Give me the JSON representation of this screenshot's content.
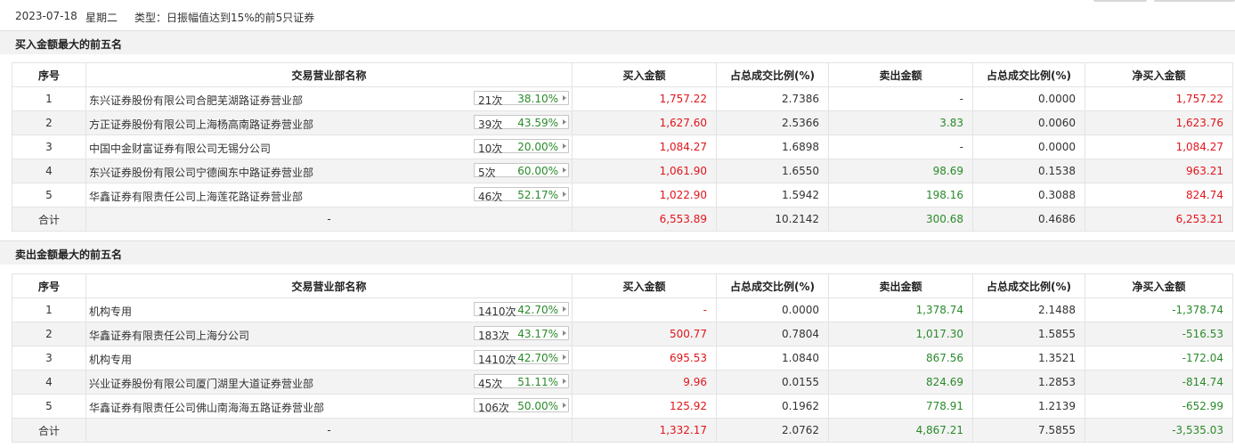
{
  "header": {
    "date": "2023-07-18",
    "weekday": "星期二",
    "type_text": "类型：日振幅值达到15%的前5只证券"
  },
  "columns": [
    "序号",
    "交易营业部名称",
    "买入金额",
    "占总成交比例(%)",
    "卖出金额",
    "占总成交比例(%)",
    "净买入金额"
  ],
  "buy_section": {
    "title": "买入金额最大的前五名",
    "rows": [
      {
        "idx": "1",
        "name": "东兴证券股份有限公司合肥芜湖路证券营业部",
        "times": "21次",
        "rate": "38.10%",
        "buy": "1,757.22",
        "buy_pct": "2.7386",
        "sell": "-",
        "sell_pct": "0.0000",
        "net": "1,757.22",
        "net_color": "red"
      },
      {
        "idx": "2",
        "name": "方正证券股份有限公司上海杨高南路证券营业部",
        "times": "39次",
        "rate": "43.59%",
        "buy": "1,627.60",
        "buy_pct": "2.5366",
        "sell": "3.83",
        "sell_pct": "0.0060",
        "net": "1,623.76",
        "net_color": "red"
      },
      {
        "idx": "3",
        "name": "中国中金财富证券有限公司无锡分公司",
        "times": "10次",
        "rate": "20.00%",
        "buy": "1,084.27",
        "buy_pct": "1.6898",
        "sell": "-",
        "sell_pct": "0.0000",
        "net": "1,084.27",
        "net_color": "red"
      },
      {
        "idx": "4",
        "name": "东兴证券股份有限公司宁德闽东中路证券营业部",
        "times": "5次",
        "rate": "60.00%",
        "buy": "1,061.90",
        "buy_pct": "1.6550",
        "sell": "98.69",
        "sell_pct": "0.1538",
        "net": "963.21",
        "net_color": "red"
      },
      {
        "idx": "5",
        "name": "华鑫证券有限责任公司上海莲花路证券营业部",
        "times": "46次",
        "rate": "52.17%",
        "buy": "1,022.90",
        "buy_pct": "1.5942",
        "sell": "198.16",
        "sell_pct": "0.3088",
        "net": "824.74",
        "net_color": "red"
      }
    ],
    "total": {
      "label": "合计",
      "name": "-",
      "buy": "6,553.89",
      "buy_pct": "10.2142",
      "sell": "300.68",
      "sell_pct": "0.4686",
      "net": "6,253.21",
      "net_color": "red"
    }
  },
  "sell_section": {
    "title": "卖出金额最大的前五名",
    "rows": [
      {
        "idx": "1",
        "name": "机构专用",
        "times": "1410次",
        "rate": "42.70%",
        "buy": "-",
        "buy_pct": "0.0000",
        "sell": "1,378.74",
        "sell_pct": "2.1488",
        "net": "-1,378.74",
        "net_color": "green"
      },
      {
        "idx": "2",
        "name": "华鑫证券有限责任公司上海分公司",
        "times": "183次",
        "rate": "43.17%",
        "buy": "500.77",
        "buy_pct": "0.7804",
        "sell": "1,017.30",
        "sell_pct": "1.5855",
        "net": "-516.53",
        "net_color": "green"
      },
      {
        "idx": "3",
        "name": "机构专用",
        "times": "1410次",
        "rate": "42.70%",
        "buy": "695.53",
        "buy_pct": "1.0840",
        "sell": "867.56",
        "sell_pct": "1.3521",
        "net": "-172.04",
        "net_color": "green"
      },
      {
        "idx": "4",
        "name": "兴业证券股份有限公司厦门湖里大道证券营业部",
        "times": "45次",
        "rate": "51.11%",
        "buy": "9.96",
        "buy_pct": "0.0155",
        "sell": "824.69",
        "sell_pct": "1.2853",
        "net": "-814.74",
        "net_color": "green"
      },
      {
        "idx": "5",
        "name": "华鑫证券有限责任公司佛山南海海五路证券营业部",
        "times": "106次",
        "rate": "50.00%",
        "buy": "125.92",
        "buy_pct": "0.1962",
        "sell": "778.91",
        "sell_pct": "1.2139",
        "net": "-652.99",
        "net_color": "green"
      }
    ],
    "total": {
      "label": "合计",
      "name": "-",
      "buy": "1,332.17",
      "buy_pct": "2.0762",
      "sell": "4,867.21",
      "sell_pct": "7.5855",
      "net": "-3,535.03",
      "net_color": "green"
    }
  }
}
